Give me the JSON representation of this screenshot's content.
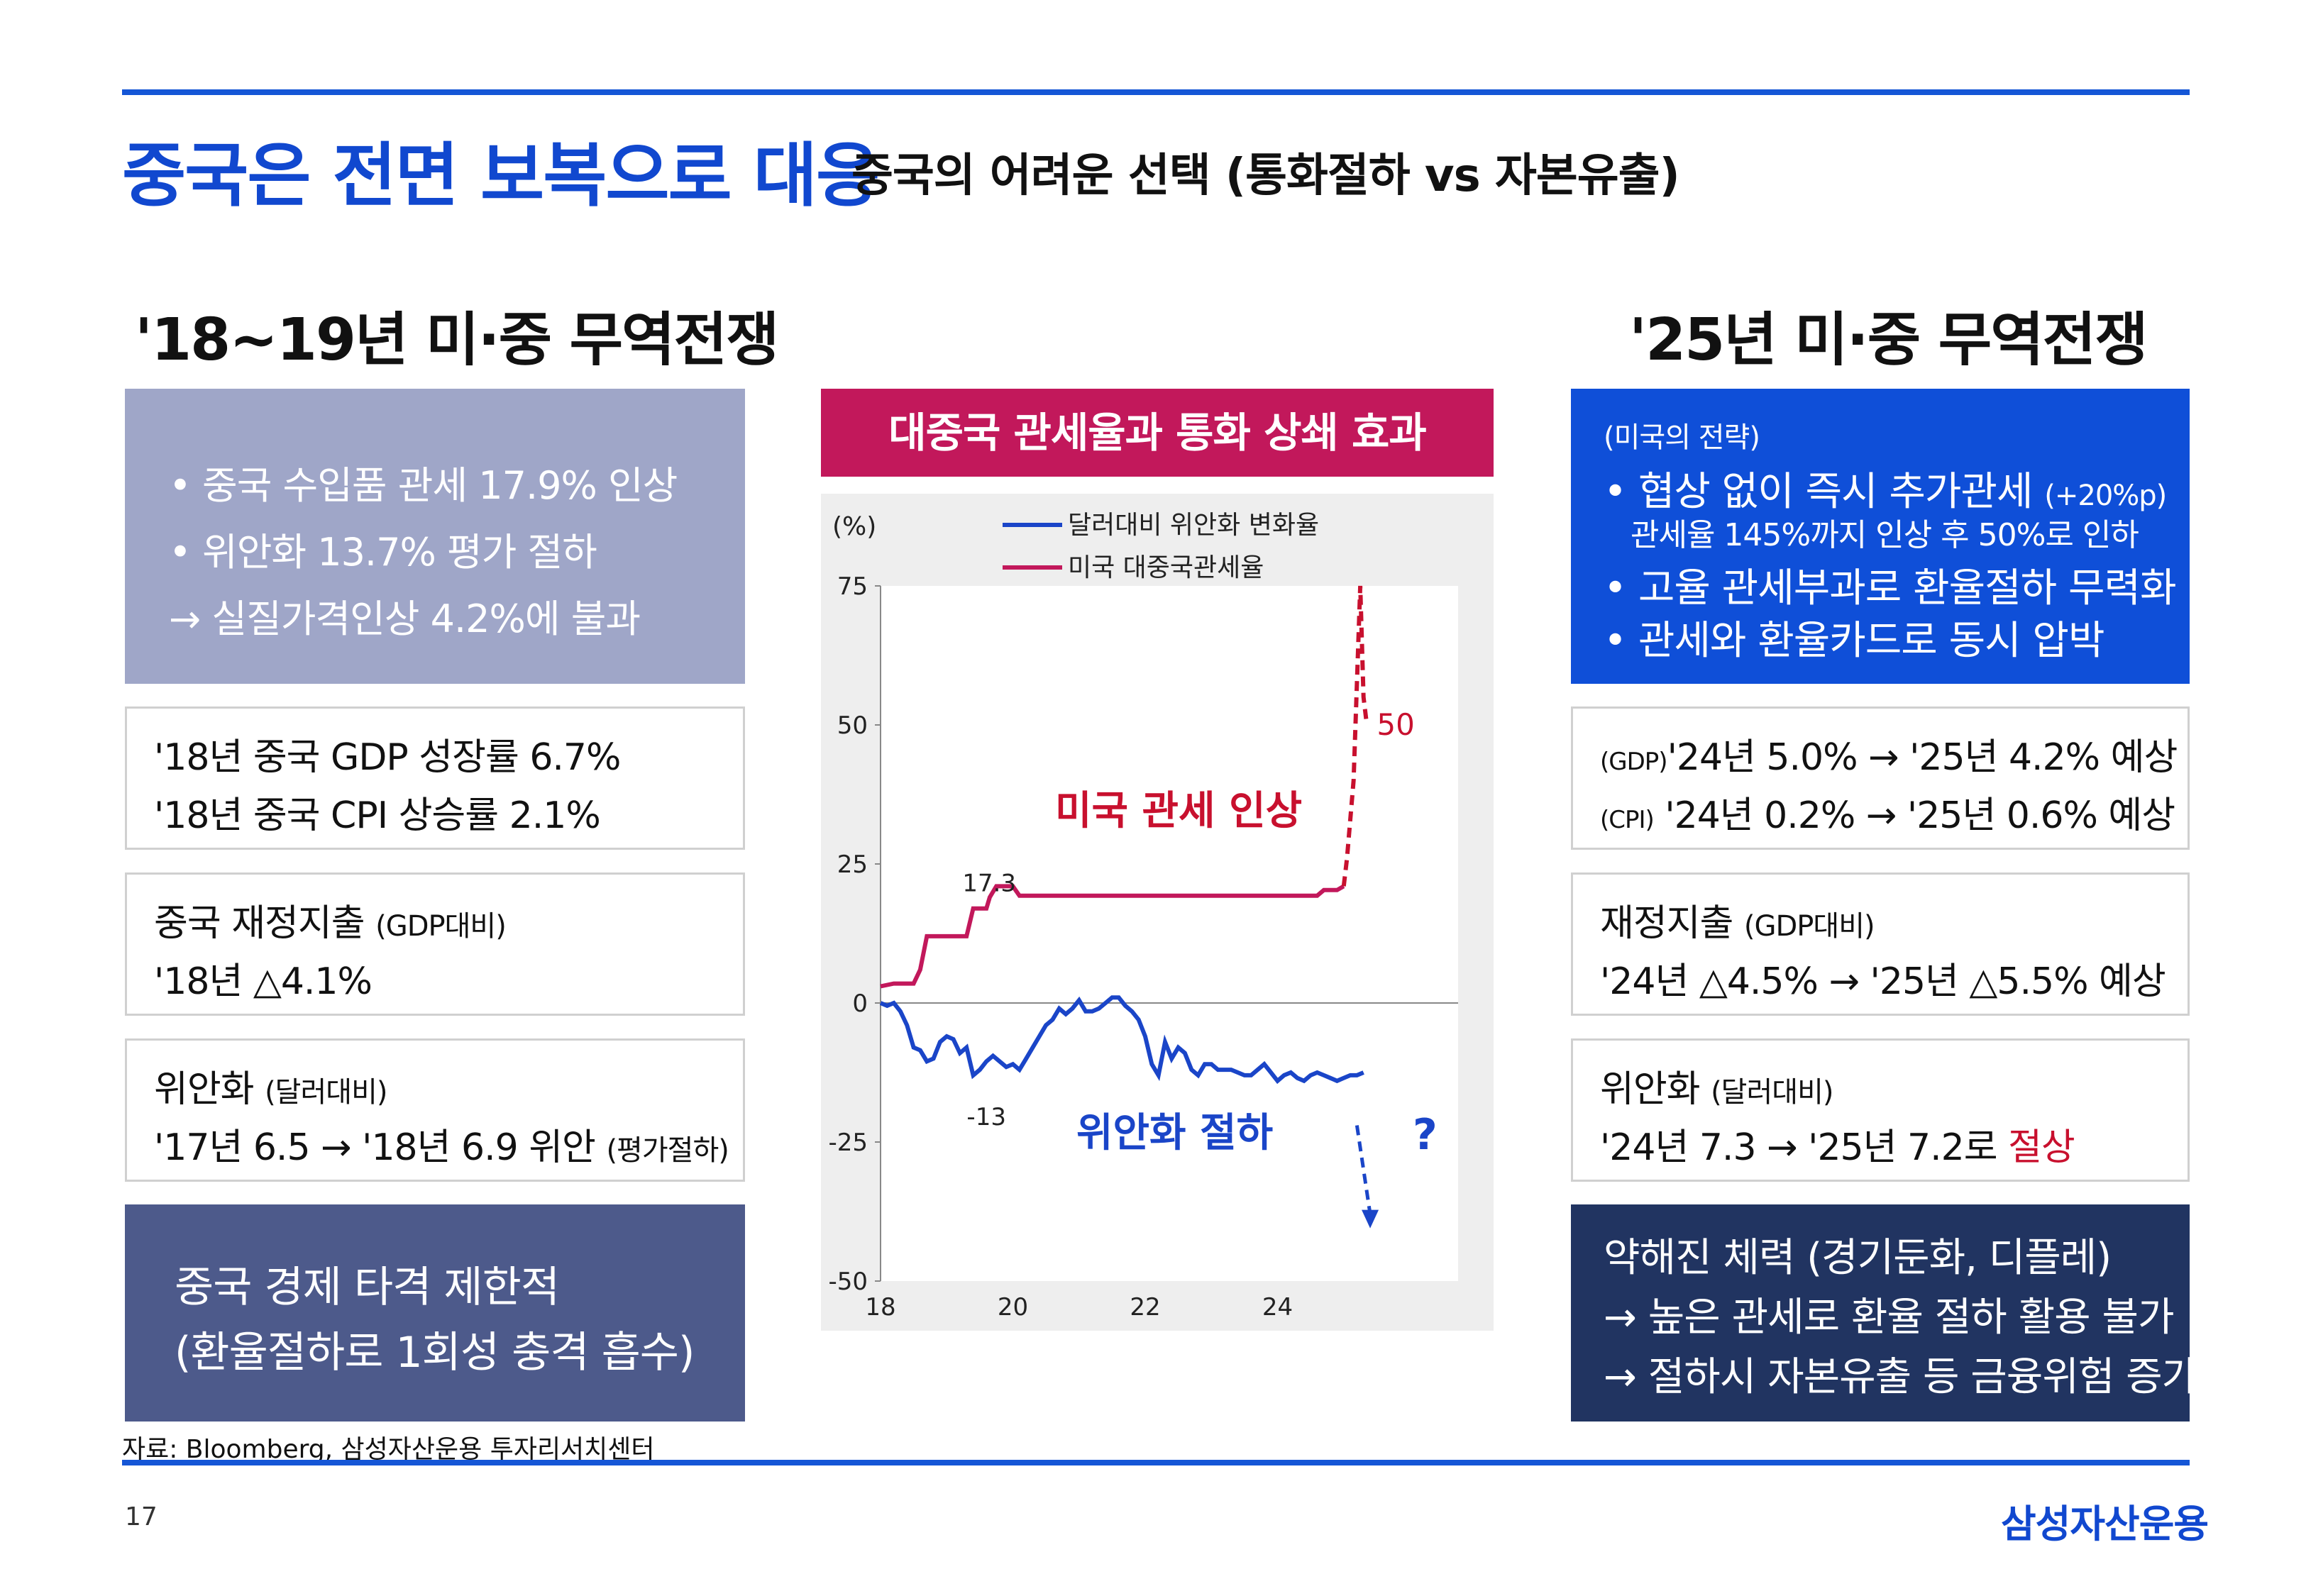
{
  "header": {
    "title": "중국은 전면 보복으로 대응",
    "subtitle": "중국의 어려운 선택 (통화절하 vs 자본유출)"
  },
  "left": {
    "title": "'18~19년 미·중 무역전쟁",
    "box1": [
      "• 중국 수입품 관세 17.9% 인상",
      "• 위안화 13.7% 평가 절하",
      "→ 실질가격인상 4.2%에 불과"
    ],
    "box2": [
      "'18년 중국 GDP 성장률 6.7%",
      "'18년 중국 CPI 상승률 2.1%"
    ],
    "box3": {
      "l1_main": "중국 재정지출 ",
      "l1_small": "(GDP대비)",
      "l2": "'18년 △4.1%"
    },
    "box4": {
      "l1_main": "위안화 ",
      "l1_small": "(달러대비)",
      "l2_main": "'17년 6.5 → '18년 6.9 위안 ",
      "l2_small": "(평가절하)"
    },
    "box5": [
      "중국 경제 타격 제한적",
      "(환율절하로 1회성 충격 흡수)"
    ]
  },
  "right": {
    "title": "'25년 미·중 무역전쟁",
    "box1": {
      "label": "(미국의 전략)",
      "b1_main": "• 협상 없이 즉시 추가관세 ",
      "b1_small": "(+20%p)",
      "b1_sub": "관세율 145%까지 인상 후 50%로 인하",
      "b2": "• 고율 관세부과로 환율절하 무력화",
      "b3": "• 관세와 환율카드로 동시 압박"
    },
    "box2": {
      "l1_small": "(GDP)",
      "l1_main": "'24년 5.0% → '25년 4.2% 예상",
      "l2_small": "(CPI)",
      "l2_main": " '24년 0.2% → '25년 0.6% 예상"
    },
    "box3": {
      "l1_main": "재정지출 ",
      "l1_small": "(GDP대비)",
      "l2": "'24년 △4.5% → '25년 △5.5% 예상"
    },
    "box4": {
      "l1_main": "위안화 ",
      "l1_small": "(달러대비)",
      "l2_main": "'24년 7.3 → '25년 7.2로 ",
      "l2_red": "절상"
    },
    "box5": [
      "약해진 체력 (경기둔화, 디플레)",
      "→ 높은 관세로 환율 절하 활용 불가",
      "→ 절하시 자본유출 등 금융위험 증가"
    ]
  },
  "colors": {
    "accent": "#1148cf",
    "chart_header": "#c2185b",
    "series_fx": "#1a45c8",
    "series_tariff": "#c2185b",
    "annot_red": "#c8102e"
  },
  "chart_data": {
    "type": "line",
    "title": "대중국 관세율과 통화 상쇄 효과",
    "ylabel": "(%)",
    "ylim": [
      -50,
      75
    ],
    "yticks": [
      75,
      50,
      25,
      0,
      -25,
      -50
    ],
    "xlim": [
      2018,
      2026
    ],
    "xticks": [
      {
        "value": 2018,
        "label": "18"
      },
      {
        "value": 2020,
        "label": "20"
      },
      {
        "value": 2022,
        "label": "22"
      },
      {
        "value": 2024,
        "label": "24"
      }
    ],
    "legend": {
      "placement": "top"
    },
    "series": [
      {
        "name": "달러대비 위안화 변화율",
        "color": "#1a45c8",
        "x": [
          2018.0,
          2018.1,
          2018.2,
          2018.3,
          2018.4,
          2018.5,
          2018.6,
          2018.7,
          2018.8,
          2018.9,
          2019.0,
          2019.1,
          2019.2,
          2019.3,
          2019.4,
          2019.5,
          2019.6,
          2019.7,
          2019.8,
          2019.9,
          2020.0,
          2020.1,
          2020.2,
          2020.3,
          2020.4,
          2020.5,
          2020.6,
          2020.7,
          2020.8,
          2020.9,
          2021.0,
          2021.1,
          2021.2,
          2021.3,
          2021.4,
          2021.5,
          2021.6,
          2021.7,
          2021.8,
          2021.9,
          2022.0,
          2022.1,
          2022.2,
          2022.3,
          2022.4,
          2022.5,
          2022.6,
          2022.7,
          2022.8,
          2022.9,
          2023.0,
          2023.1,
          2023.2,
          2023.3,
          2023.4,
          2023.5,
          2023.6,
          2023.7,
          2023.8,
          2023.9,
          2024.0,
          2024.1,
          2024.2,
          2024.3,
          2024.4,
          2024.5,
          2024.6,
          2024.7,
          2024.8,
          2024.9,
          2025.0,
          2025.1,
          2025.2,
          2025.3
        ],
        "y": [
          0,
          -0.5,
          0,
          -1.5,
          -4,
          -8,
          -8.5,
          -10.5,
          -10,
          -7,
          -6,
          -6.5,
          -9,
          -8,
          -13,
          -12,
          -10.5,
          -9.5,
          -10.5,
          -11.5,
          -11,
          -12,
          -10,
          -8,
          -6,
          -4,
          -3,
          -1,
          -2,
          -1,
          0.5,
          -1.5,
          -1.5,
          -1,
          0,
          1,
          1,
          -0.5,
          -1.5,
          -3,
          -6,
          -11,
          -13,
          -7,
          -10,
          -8,
          -9,
          -12,
          -13,
          -11,
          -11,
          -12,
          -12,
          -12,
          -12.5,
          -13,
          -13,
          -12,
          -11,
          -12.5,
          -14,
          -13,
          -12.5,
          -13.5,
          -14,
          -13,
          -12.5,
          -13,
          -13.5,
          -14,
          -13.5,
          -13,
          -13,
          -12.5
        ]
      },
      {
        "name": "미국 대중국관세율",
        "color": "#c2185b",
        "x": [
          2018.0,
          2018.2,
          2018.25,
          2018.5,
          2018.6,
          2018.7,
          2019.3,
          2019.4,
          2019.6,
          2019.65,
          2019.75,
          2020.0,
          2020.1,
          2024.6,
          2024.7,
          2024.9,
          2025.0
        ],
        "y": [
          3,
          3.5,
          3.5,
          3.5,
          6,
          12,
          12,
          17,
          17,
          19,
          21,
          21,
          19.3,
          19.3,
          20.3,
          20.3,
          21
        ],
        "projection_x": [
          2025.0,
          2025.05,
          2025.15,
          2025.25,
          2025.3,
          2025.35
        ],
        "projection_y": [
          21,
          26,
          40,
          75,
          55,
          50
        ]
      }
    ],
    "annotations": [
      {
        "text": "17.3",
        "x": 2019.75,
        "y": 17.3
      },
      {
        "text": "-13",
        "x": 2019.6,
        "y": -13
      },
      {
        "text": "50",
        "x": 2025.35,
        "y": 50
      },
      {
        "text": "미국 관세 인상",
        "color": "#c8102e"
      },
      {
        "text": "위안화 절하",
        "color": "#1a45c8"
      },
      {
        "text": "?",
        "color": "#1a45c8"
      }
    ],
    "fx_projection": {
      "x": [
        2025.2,
        2025.4
      ],
      "y": [
        -22,
        -40
      ]
    }
  },
  "footer": {
    "source": "자료: Bloomberg, 삼성자산운용 투자리서치센터",
    "page": "17",
    "logo": "삼성자산운용"
  }
}
